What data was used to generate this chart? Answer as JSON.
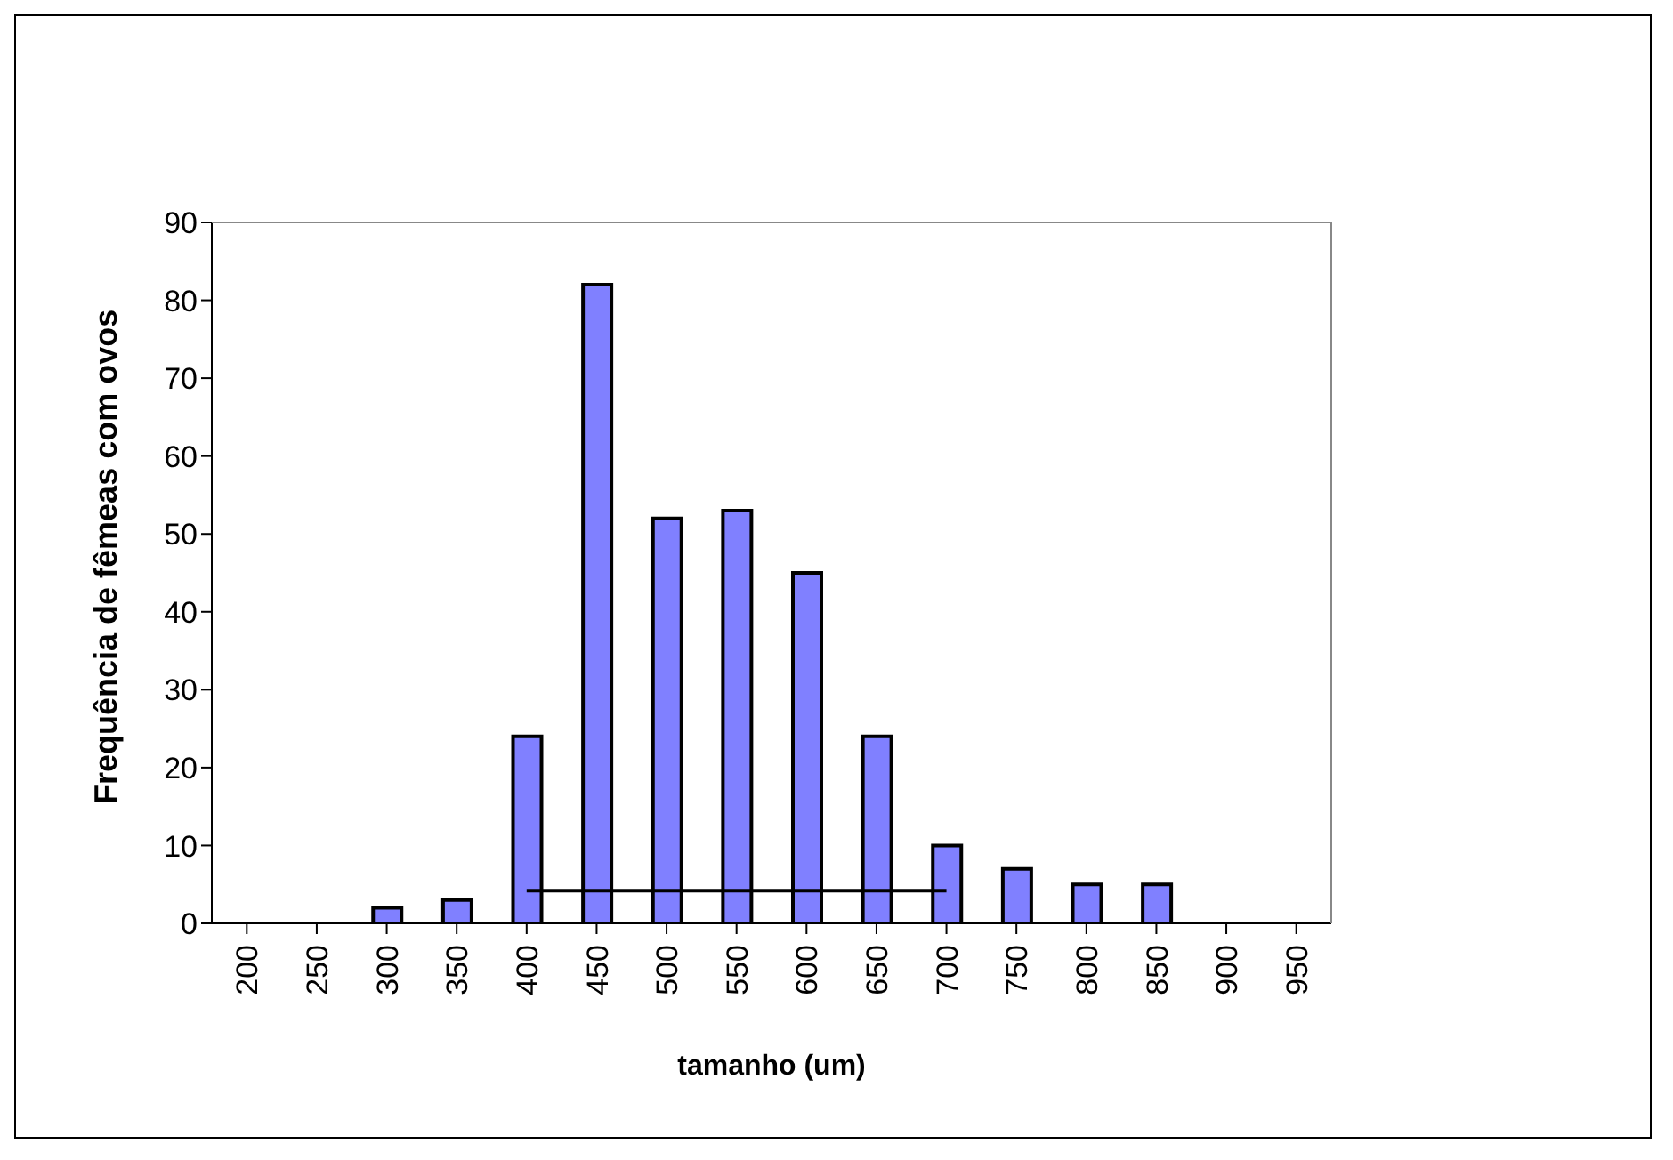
{
  "chart_data": {
    "type": "bar",
    "xlabel": "tamanho (um)",
    "ylabel": "Frequência de fêmeas com ovos",
    "categories": [
      "200",
      "250",
      "300",
      "350",
      "400",
      "450",
      "500",
      "550",
      "600",
      "650",
      "700",
      "750",
      "800",
      "850",
      "900",
      "950"
    ],
    "series": [
      {
        "color": "#8080ff",
        "values": [
          0,
          0,
          2,
          3,
          24,
          82,
          52,
          53,
          45,
          24,
          10,
          7,
          5,
          5,
          0,
          0
        ]
      },
      {
        "type": "line",
        "color": "#000000",
        "values": [
          null,
          null,
          null,
          null,
          4.2,
          4.2,
          4.2,
          4.2,
          4.2,
          4.2,
          4.2,
          null,
          null,
          null,
          null,
          null
        ]
      }
    ],
    "ylim": [
      0,
      90
    ],
    "yticks": [
      0,
      10,
      20,
      30,
      40,
      50,
      60,
      70,
      80,
      90
    ],
    "grid": false,
    "legend": false,
    "marker": "none",
    "line_style": "solid"
  }
}
